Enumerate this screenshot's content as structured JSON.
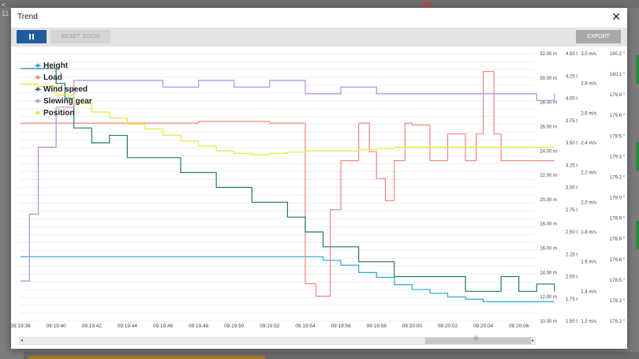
{
  "background": {
    "top_text": "11",
    "left_text": "<"
  },
  "modal": {
    "title": "Trend",
    "close_icon": "close-icon"
  },
  "toolbar": {
    "pause_icon": "pause-icon",
    "reset_label": "RESET ZOOM",
    "export_label": "EXPORT"
  },
  "legend": [
    {
      "name": "Height",
      "color": "#29a8d8"
    },
    {
      "name": "Load",
      "color": "#f08a7e"
    },
    {
      "name": "Wind speed",
      "color": "#1f7a66"
    },
    {
      "name": "Slewing gear",
      "color": "#b48fe0"
    },
    {
      "name": "Position",
      "color": "#e8e83a"
    }
  ],
  "chart_data": {
    "type": "line",
    "x_ticks": [
      "09:19:38",
      "09:19:40",
      "09:19:42",
      "09:19:44",
      "09:19:46",
      "09:19:48",
      "09:19:50",
      "09:19:52",
      "09:19:54",
      "09:19:56",
      "09:19:58",
      "09:20:00",
      "09:20:02",
      "09:20:04",
      "09:20:06"
    ],
    "axes": [
      {
        "name": "Height",
        "unit": "m",
        "range": [
          10,
          32
        ],
        "ticks": [
          "32.00 m",
          "30.00 m",
          "28.00 m",
          "26.00 m",
          "24.00 m",
          "22.00 m",
          "20.00 m",
          "18.00 m",
          "16.00 m",
          "14.00 m",
          "12.00 m",
          "10.00 m"
        ]
      },
      {
        "name": "Load",
        "unit": "t",
        "range": [
          1.5,
          4.5
        ],
        "ticks": [
          "4.50 t",
          "4.25 t",
          "4.00 t",
          "3.75 t",
          "3.50 t",
          "3.25 t",
          "3.00 t",
          "2.75 t",
          "2.50 t",
          "2.25 t",
          "2.00 t",
          "1.75 t",
          "1.50 t"
        ]
      },
      {
        "name": "Wind speed",
        "unit": "m/s",
        "range": [
          1.2,
          3.0
        ],
        "ticks": [
          "3.0 m/s",
          "2.8 m/s",
          "2.6 m/s",
          "2.4 m/s",
          "2.2 m/s",
          "2.0 m/s",
          "1.8 m/s",
          "1.6 m/s",
          "1.4 m/s",
          "1.2 m/s"
        ]
      },
      {
        "name": "Slewing gear",
        "unit": "°",
        "range": [
          178.2,
          180.2
        ],
        "ticks": [
          "180.2 °",
          "180.1 °",
          "179.8 °",
          "179.6 °",
          "179.5 °",
          "179.3 °",
          "179.2 °",
          "179.0 °",
          "178.9 °",
          "178.8 °",
          "178.6 °",
          "178.5 °",
          "178.3 °",
          "178.2 °"
        ]
      }
    ],
    "series": [
      {
        "name": "Height",
        "axis": "m",
        "x": [
          38,
          40,
          42,
          44,
          46,
          48,
          50,
          52,
          54,
          55,
          56,
          57,
          58,
          59,
          60,
          61,
          62,
          63,
          64,
          65,
          66,
          67,
          68
        ],
        "values": [
          15.3,
          15.3,
          15.3,
          15.3,
          15.3,
          15.3,
          15.3,
          15.3,
          15.3,
          15.0,
          14.6,
          14.0,
          13.6,
          13.0,
          12.6,
          12.3,
          12.0,
          11.8,
          11.6,
          11.6,
          11.6,
          11.6,
          11.6
        ]
      },
      {
        "name": "Load",
        "axis": "t",
        "x": [
          38,
          44,
          48,
          52,
          53.5,
          54,
          54.6,
          55,
          55.4,
          56,
          57,
          57.6,
          58,
          58.5,
          59,
          59.6,
          60,
          61,
          62,
          63,
          63.6,
          64,
          64.2,
          64.6,
          65,
          66,
          67,
          68
        ],
        "values": [
          3.72,
          3.72,
          3.74,
          3.72,
          3.72,
          1.92,
          1.78,
          1.78,
          2.75,
          3.3,
          3.72,
          3.4,
          3.1,
          2.85,
          3.3,
          3.72,
          3.7,
          3.3,
          3.6,
          3.3,
          3.6,
          4.3,
          4.3,
          3.6,
          3.3,
          3.3,
          3.3,
          3.3
        ]
      },
      {
        "name": "Wind speed",
        "axis": "m/s",
        "x": [
          38,
          39,
          40,
          40.5,
          41,
          42,
          43,
          44,
          45,
          46,
          47,
          48,
          49,
          50,
          51,
          52,
          53,
          54,
          55,
          56,
          57,
          58,
          59,
          60,
          61,
          62,
          63,
          64,
          65,
          66,
          67,
          68
        ],
        "values": [
          2.9,
          2.9,
          2.8,
          2.7,
          2.5,
          2.4,
          2.45,
          2.3,
          2.3,
          2.3,
          2.2,
          2.2,
          2.1,
          2.1,
          2.0,
          2.0,
          1.9,
          1.8,
          1.7,
          1.7,
          1.6,
          1.6,
          1.5,
          1.5,
          1.5,
          1.5,
          1.4,
          1.4,
          1.5,
          1.4,
          1.45,
          1.4
        ]
      },
      {
        "name": "Slewing gear",
        "axis": "°",
        "x": [
          38,
          38.5,
          39,
          40,
          41,
          41.5,
          42,
          44,
          46,
          48,
          50,
          52,
          54,
          56,
          58,
          60,
          62,
          64,
          66,
          67,
          68
        ],
        "values": [
          178.5,
          179.0,
          179.5,
          179.8,
          180.0,
          180.0,
          180.0,
          180.0,
          179.95,
          180.0,
          179.95,
          180.0,
          179.9,
          179.95,
          179.9,
          179.9,
          179.9,
          179.9,
          179.9,
          179.85,
          179.9
        ]
      },
      {
        "name": "Position",
        "axis": "m",
        "x": [
          38,
          39,
          40,
          41,
          42,
          43,
          44,
          45,
          46,
          47,
          48,
          49,
          50,
          51,
          52,
          53,
          54,
          55,
          56,
          57,
          58,
          59,
          60,
          61,
          62,
          63,
          64,
          65,
          66,
          67,
          68
        ],
        "values": [
          29.5,
          29.3,
          28.6,
          27.9,
          27.2,
          26.7,
          26.2,
          25.8,
          25.3,
          24.8,
          24.4,
          24.0,
          23.8,
          23.7,
          23.8,
          23.9,
          24.0,
          24.0,
          24.0,
          24.1,
          24.2,
          24.3,
          24.3,
          24.3,
          24.3,
          24.3,
          24.3,
          24.3,
          24.3,
          24.3,
          24.3
        ]
      }
    ]
  }
}
